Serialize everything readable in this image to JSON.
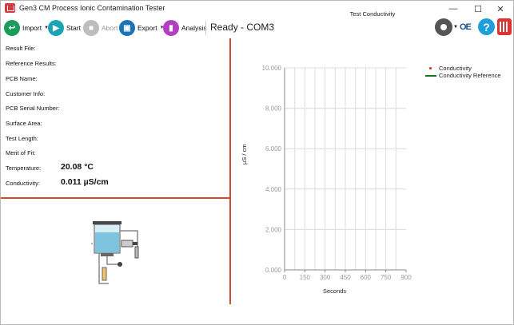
{
  "window": {
    "title": "Gen3 CM Process Ionic Contamination Tester",
    "min_glyph": "—",
    "max_glyph": "☐",
    "close_glyph": "✕"
  },
  "toolbar": {
    "import_label": "Import",
    "start_label": "Start",
    "abort_label": "Abort",
    "export_label": "Export",
    "analysis_label": "Analysis",
    "status": "Ready - COM3",
    "caret": "▼",
    "help_glyph": "?",
    "oe_text": "OE"
  },
  "info": {
    "result_file_label": "Result File:",
    "reference_results_label": "Reference Results:",
    "pcb_name_label": "PCB Name:",
    "customer_info_label": "Customer Info:",
    "pcb_serial_label": "PCB Serial Number:",
    "surface_area_label": "Surface Area:",
    "test_length_label": "Test Length:",
    "merit_label": "Merit of Fit:",
    "temperature_label": "Temperature:",
    "temperature_value": "20.08 °C",
    "conductivity_label": "Conductivity:",
    "conductivity_value": "0.011 µS/cm"
  },
  "chart_data": {
    "type": "scatter",
    "title": "Test Conductivity",
    "xlabel": "Seconds",
    "ylabel": "µS / cm",
    "xlim": [
      0,
      900
    ],
    "ylim": [
      0,
      10
    ],
    "x_ticks": [
      "0",
      "150",
      "300",
      "450",
      "600",
      "750",
      "900"
    ],
    "y_ticks": [
      "0.000",
      "2.000",
      "4.000",
      "6.000",
      "8.000",
      "10.000"
    ],
    "grid": true,
    "legend_position": "top-right",
    "series": [
      {
        "name": "Conductivity",
        "values": [],
        "color": "#d22222"
      },
      {
        "name": "Conductivity Reference",
        "values": [],
        "color": "#1a7a1a"
      }
    ]
  },
  "colors": {
    "import": "#1a9c5a",
    "start": "#1aa3b5",
    "abort": "#bdbdbd",
    "export": "#1a73b5",
    "analysis": "#b23fbf",
    "divider": "#d14a2f"
  }
}
